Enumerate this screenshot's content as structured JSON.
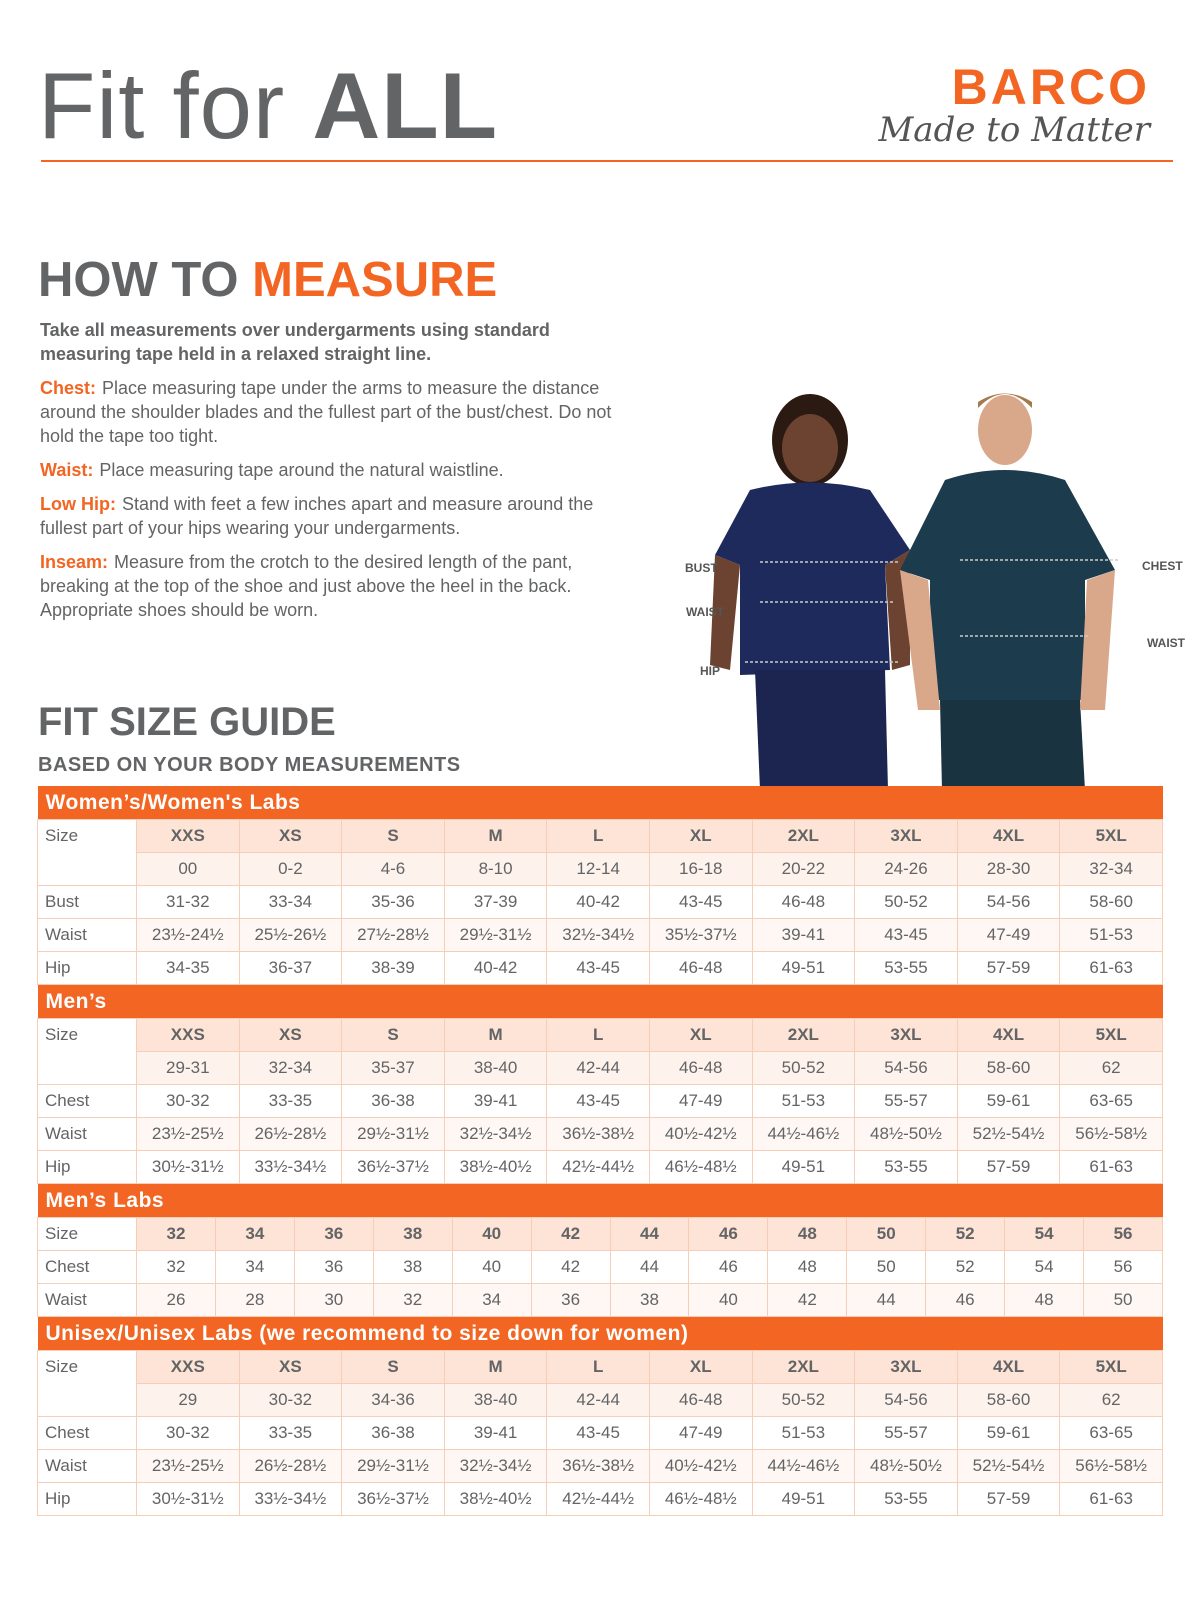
{
  "header": {
    "title": "Fit for",
    "title_strong": "ALL",
    "brand": "BARCO",
    "tagline": "Made to Matter"
  },
  "measure": {
    "title": "HOW TO",
    "title_highlight": "MEASURE",
    "intro": "Take all measurements over undergarments using standard measuring tape held in a relaxed straight line.",
    "items": [
      {
        "label": "Chest:",
        "text": "Place measuring tape under the arms to measure the distance around the shoulder blades and the fullest part of the bust/chest. Do not hold the tape too tight."
      },
      {
        "label": "Waist:",
        "text": "Place measuring tape around the natural waistline."
      },
      {
        "label": "Low Hip:",
        "text": "Stand with feet a few inches apart and measure around the fullest part of your hips wearing your undergarments."
      },
      {
        "label": "Inseam:",
        "text": "Measure from the crotch to the desired length of the pant, breaking at the top of the shoe and just above the heel in the back. Appropriate shoes should be worn."
      }
    ]
  },
  "figure": {
    "women_labels": [
      "BUST",
      "WAIST",
      "HIP"
    ],
    "men_labels": [
      "CHEST",
      "WAIST"
    ]
  },
  "guide": {
    "title": "FIT SIZE GUIDE",
    "subtitle": "BASED ON YOUR BODY MEASUREMENTS",
    "sections": [
      {
        "title": "Women’s/Women's Labs",
        "size_label": "Size",
        "sizes": [
          "XXS",
          "XS",
          "S",
          "M",
          "L",
          "XL",
          "2XL",
          "3XL",
          "4XL",
          "5XL"
        ],
        "numbers": [
          "00",
          "0-2",
          "4-6",
          "8-10",
          "12-14",
          "16-18",
          "20-22",
          "24-26",
          "28-30",
          "32-34"
        ],
        "rows": [
          {
            "label": "Bust",
            "values": [
              "31-32",
              "33-34",
              "35-36",
              "37-39",
              "40-42",
              "43-45",
              "46-48",
              "50-52",
              "54-56",
              "58-60"
            ]
          },
          {
            "label": "Waist",
            "values": [
              "23½-24½",
              "25½-26½",
              "27½-28½",
              "29½-31½",
              "32½-34½",
              "35½-37½",
              "39-41",
              "43-45",
              "47-49",
              "51-53"
            ]
          },
          {
            "label": "Hip",
            "values": [
              "34-35",
              "36-37",
              "38-39",
              "40-42",
              "43-45",
              "46-48",
              "49-51",
              "53-55",
              "57-59",
              "61-63"
            ]
          }
        ]
      },
      {
        "title": "Men’s",
        "size_label": "Size",
        "sizes": [
          "XXS",
          "XS",
          "S",
          "M",
          "L",
          "XL",
          "2XL",
          "3XL",
          "4XL",
          "5XL"
        ],
        "numbers": [
          "29-31",
          "32-34",
          "35-37",
          "38-40",
          "42-44",
          "46-48",
          "50-52",
          "54-56",
          "58-60",
          "62"
        ],
        "rows": [
          {
            "label": "Chest",
            "values": [
              "30-32",
              "33-35",
              "36-38",
              "39-41",
              "43-45",
              "47-49",
              "51-53",
              "55-57",
              "59-61",
              "63-65"
            ]
          },
          {
            "label": "Waist",
            "values": [
              "23½-25½",
              "26½-28½",
              "29½-31½",
              "32½-34½",
              "36½-38½",
              "40½-42½",
              "44½-46½",
              "48½-50½",
              "52½-54½",
              "56½-58½"
            ]
          },
          {
            "label": "Hip",
            "values": [
              "30½-31½",
              "33½-34½",
              "36½-37½",
              "38½-40½",
              "42½-44½",
              "46½-48½",
              "49-51",
              "53-55",
              "57-59",
              "61-63"
            ]
          }
        ]
      },
      {
        "title": "Men’s Labs",
        "size_label": "Size",
        "sizes": [
          "32",
          "34",
          "36",
          "38",
          "40",
          "42",
          "44",
          "46",
          "48",
          "50",
          "52",
          "54",
          "56"
        ],
        "rows": [
          {
            "label": "Chest",
            "values": [
              "32",
              "34",
              "36",
              "38",
              "40",
              "42",
              "44",
              "46",
              "48",
              "50",
              "52",
              "54",
              "56"
            ]
          },
          {
            "label": "Waist",
            "values": [
              "26",
              "28",
              "30",
              "32",
              "34",
              "36",
              "38",
              "40",
              "42",
              "44",
              "46",
              "48",
              "50"
            ]
          }
        ]
      },
      {
        "title": "Unisex/Unisex Labs (we recommend to size down for women)",
        "size_label": "Size",
        "sizes": [
          "XXS",
          "XS",
          "S",
          "M",
          "L",
          "XL",
          "2XL",
          "3XL",
          "4XL",
          "5XL"
        ],
        "numbers": [
          "29",
          "30-32",
          "34-36",
          "38-40",
          "42-44",
          "46-48",
          "50-52",
          "54-56",
          "58-60",
          "62"
        ],
        "rows": [
          {
            "label": "Chest",
            "values": [
              "30-32",
              "33-35",
              "36-38",
              "39-41",
              "43-45",
              "47-49",
              "51-53",
              "55-57",
              "59-61",
              "63-65"
            ]
          },
          {
            "label": "Waist",
            "values": [
              "23½-25½",
              "26½-28½",
              "29½-31½",
              "32½-34½",
              "36½-38½",
              "40½-42½",
              "44½-46½",
              "48½-50½",
              "52½-54½",
              "56½-58½"
            ]
          },
          {
            "label": "Hip",
            "values": [
              "30½-31½",
              "33½-34½",
              "36½-37½",
              "38½-40½",
              "42½-44½",
              "46½-48½",
              "49-51",
              "53-55",
              "57-59",
              "61-63"
            ]
          }
        ]
      }
    ]
  }
}
